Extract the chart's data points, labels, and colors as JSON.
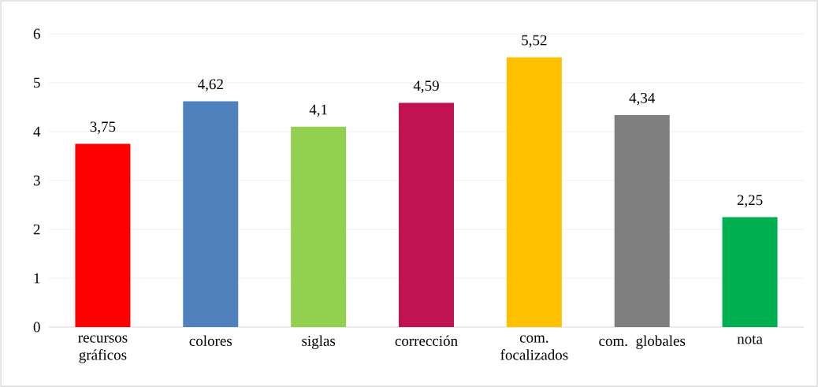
{
  "chart_data": {
    "type": "bar",
    "categories": [
      "recursos gráficos",
      "colores",
      "siglas",
      "corrección",
      "com. focalizados",
      "com. globales",
      "nota"
    ],
    "values": [
      3.75,
      4.62,
      4.1,
      4.59,
      5.52,
      4.34,
      2.25
    ],
    "value_labels": [
      "3,75",
      "4,62",
      "4,1",
      "4,59",
      "5,52",
      "4,34",
      "2,25"
    ],
    "colors": [
      "#ff0000",
      "#4f81bd",
      "#92d050",
      "#c0134f",
      "#ffc000",
      "#7f7f7f",
      "#00b050"
    ],
    "ylim": [
      0,
      6
    ],
    "yticks": [
      0,
      1,
      2,
      3,
      4,
      5,
      6
    ],
    "grid": "y"
  }
}
